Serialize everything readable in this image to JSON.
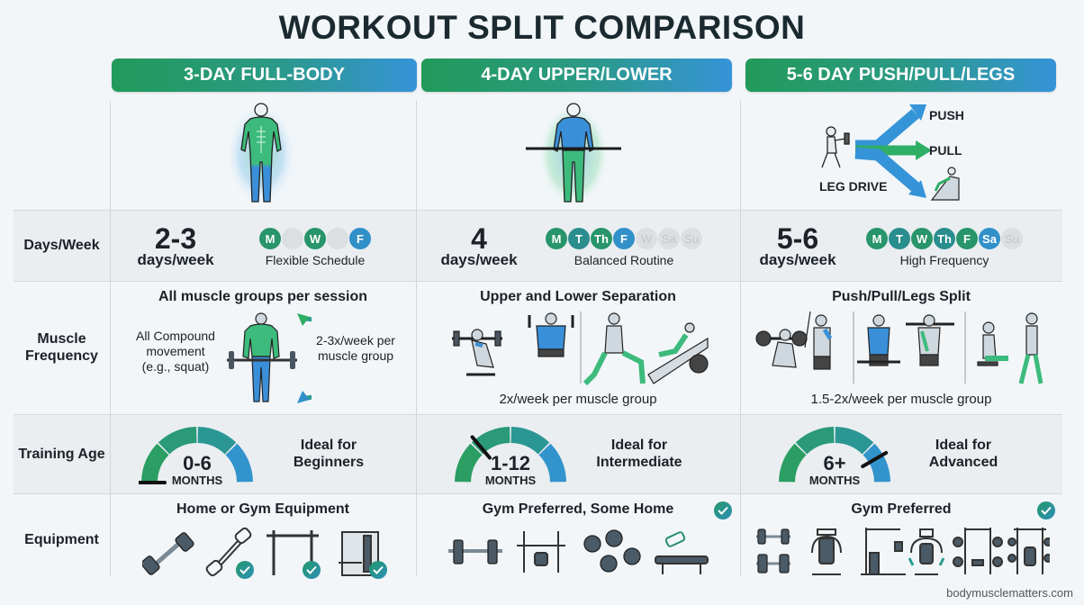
{
  "title": "WORKOUT SPLIT COMPARISON",
  "columns": [
    {
      "header": "3-DAY FULL-BODY"
    },
    {
      "header": "4-DAY UPPER/LOWER"
    },
    {
      "header": "5-6 DAY PUSH/PULL/LEGS"
    }
  ],
  "split_diagram": {
    "push_label": "PUSH",
    "pull_label": "PULL",
    "legs_label": "LEG DRIVE"
  },
  "rows": {
    "days_week": {
      "label": "Days/Week",
      "cells": [
        {
          "number": "2-3",
          "unit": "days/week",
          "schedule": "Flexible Schedule",
          "days": [
            {
              "l": "M",
              "s": "on-g"
            },
            {
              "l": "",
              "s": "off"
            },
            {
              "l": "W",
              "s": "on-g"
            },
            {
              "l": "",
              "s": "off"
            },
            {
              "l": "F",
              "s": "on-b"
            }
          ]
        },
        {
          "number": "4",
          "unit": "days/week",
          "schedule": "Balanced Routine",
          "days": [
            {
              "l": "M",
              "s": "on-g"
            },
            {
              "l": "T",
              "s": "on-t"
            },
            {
              "l": "Th",
              "s": "on-g"
            },
            {
              "l": "F",
              "s": "on-b"
            },
            {
              "l": "W",
              "s": "off"
            },
            {
              "l": "Sa",
              "s": "off"
            },
            {
              "l": "Su",
              "s": "off"
            }
          ]
        },
        {
          "number": "5-6",
          "unit": "days/week",
          "schedule": "High Frequency",
          "days": [
            {
              "l": "M",
              "s": "on-g"
            },
            {
              "l": "T",
              "s": "on-t"
            },
            {
              "l": "W",
              "s": "on-g"
            },
            {
              "l": "Th",
              "s": "on-t"
            },
            {
              "l": "F",
              "s": "on-g"
            },
            {
              "l": "Sa",
              "s": "on-b"
            },
            {
              "l": "Su",
              "s": "off"
            }
          ]
        }
      ]
    },
    "muscle_frequency": {
      "label": "Muscle Frequency",
      "cells": [
        {
          "heading": "All muscle groups per session",
          "left_note": "All Compound movement (e.g., squat)",
          "right_note": "2-3x/week per muscle group"
        },
        {
          "heading": "Upper and Lower Separation",
          "caption": "2x/week per muscle group"
        },
        {
          "heading": "Push/Pull/Legs Split",
          "caption": "1.5-2x/week per muscle group"
        }
      ]
    },
    "training_age": {
      "label": "Training Age",
      "cells": [
        {
          "value": "0-6",
          "unit": "MONTHS",
          "ideal_line1": "Ideal for",
          "ideal_line2": "Beginners",
          "needle_deg": -90
        },
        {
          "value": "1-12",
          "unit": "MONTHS",
          "ideal_line1": "Ideal for",
          "ideal_line2": "Intermediate",
          "needle_deg": -40
        },
        {
          "value": "6+",
          "unit": "MONTHS",
          "ideal_line1": "Ideal for",
          "ideal_line2": "Advanced",
          "needle_deg": 60
        }
      ]
    },
    "equipment": {
      "label": "Equipment",
      "cells": [
        {
          "heading": "Home or Gym Equipment",
          "items": [
            "dumbbell",
            "resistance-expander",
            "pull-up-bar",
            "home-gym-machine"
          ]
        },
        {
          "heading": "Gym Preferred, Some Home",
          "items": [
            "barbell",
            "bench-press-rack",
            "dumbbell-pair",
            "flat-bench"
          ]
        },
        {
          "heading": "Gym Preferred",
          "items": [
            "dumbbell-pair",
            "chest-press-machine",
            "cable-machine",
            "pec-deck-machine",
            "power-rack",
            "smith-machine"
          ]
        }
      ]
    }
  },
  "colors": {
    "green": "#229a5a",
    "teal": "#2a8d8e",
    "blue": "#3594d8",
    "gray_day": "#dcdfe2"
  },
  "footer": "bodymusclematters.com"
}
